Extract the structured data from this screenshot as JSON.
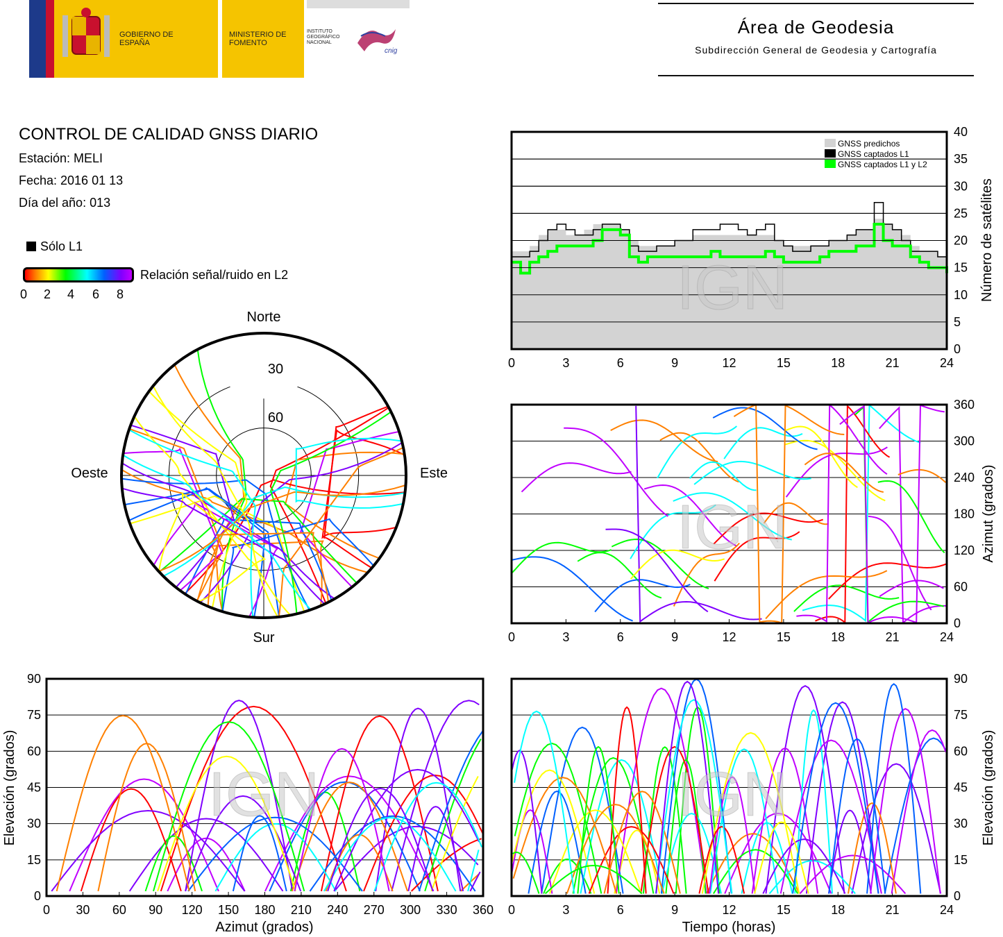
{
  "header": {
    "logo_gobierno": "GOBIERNO DE ESPAÑA",
    "logo_ministerio": "MINISTERIO DE FOMENTO",
    "logo_instituto": "INSTITUTO GEOGRÁFICO NACIONAL",
    "logo_cnig": "cnig",
    "area": "Área de Geodesia",
    "subdireccion": "Subdirección General de Geodesia y Cartografía"
  },
  "report": {
    "title": "CONTROL DE CALIDAD GNSS DIARIO",
    "station": "Estación: MELI",
    "date": "Fecha: 2016 01 13",
    "doy": "Día del año: 013"
  },
  "legend": {
    "l1_only": "Sólo L1",
    "snr_label": "Relación señal/ruido en L2",
    "snr_ticks": [
      "0",
      "2",
      "4",
      "6",
      "8"
    ],
    "colors": [
      "#ff0000",
      "#ff8000",
      "#ffff00",
      "#00ff00",
      "#00ffff",
      "#0060ff",
      "#8000ff",
      "#c000ff"
    ]
  },
  "watermark": "IGN",
  "chart_data": [
    {
      "type": "line",
      "id": "satellite-count",
      "ylabel": "Número de satélites",
      "xlim": [
        0,
        24
      ],
      "ylim": [
        0,
        40
      ],
      "xticks": [
        0,
        3,
        6,
        9,
        12,
        15,
        18,
        21,
        24
      ],
      "yticks": [
        0,
        5,
        10,
        15,
        20,
        25,
        30,
        35,
        40
      ],
      "grid": true,
      "legend_placement": "top-right",
      "x": [
        0,
        0.5,
        1,
        1.5,
        2,
        2.5,
        3,
        3.5,
        4,
        4.5,
        5,
        5.5,
        6,
        6.5,
        7,
        7.5,
        8,
        8.5,
        9,
        9.5,
        10,
        10.5,
        11,
        11.5,
        12,
        12.5,
        13,
        13.5,
        14,
        14.5,
        15,
        15.5,
        16,
        16.5,
        17,
        17.5,
        18,
        18.5,
        19,
        19.5,
        20,
        20.5,
        21,
        21.5,
        22,
        22.5,
        23,
        23.5,
        24
      ],
      "series": [
        {
          "name": "GNSS predichos",
          "color": "#d3d3d3",
          "values": [
            18,
            18,
            19,
            21,
            22,
            22,
            21,
            21,
            22,
            23,
            23,
            23,
            22,
            20,
            19,
            19,
            19,
            19,
            20,
            20,
            21,
            21,
            21,
            21,
            21,
            21,
            21,
            21,
            21,
            20,
            19,
            19,
            19,
            19,
            19,
            20,
            20,
            21,
            22,
            22,
            24,
            23,
            22,
            21,
            19,
            18,
            18,
            17,
            17
          ]
        },
        {
          "name": "GNSS captados L1",
          "color": "#000000",
          "values": [
            17,
            17,
            18,
            20,
            22,
            23,
            22,
            21,
            21,
            22,
            23,
            23,
            22,
            19,
            18,
            18,
            19,
            19,
            20,
            20,
            22,
            22,
            22,
            23,
            23,
            22,
            21,
            22,
            23,
            20,
            19,
            18,
            18,
            19,
            19,
            20,
            20,
            21,
            22,
            22,
            27,
            23,
            22,
            20,
            18,
            18,
            18,
            17,
            17
          ]
        },
        {
          "name": "GNSS captados L1 y L2",
          "color": "#00ff00",
          "values": [
            16,
            14,
            16,
            17,
            18,
            19,
            19,
            19,
            19,
            20,
            22,
            22,
            21,
            17,
            16,
            17,
            17,
            17,
            17,
            17,
            17,
            17,
            18,
            17,
            17,
            17,
            17,
            17,
            18,
            17,
            16,
            16,
            16,
            16,
            17,
            18,
            18,
            18,
            19,
            19,
            23,
            20,
            19,
            19,
            17,
            16,
            15,
            15,
            14
          ]
        }
      ]
    },
    {
      "type": "scatter",
      "id": "azimuth-vs-time",
      "ylabel": "Azimut (grados)",
      "xlim": [
        0,
        24
      ],
      "ylim": [
        0,
        360
      ],
      "xticks": [
        0,
        3,
        6,
        9,
        12,
        15,
        18,
        21,
        24
      ],
      "yticks": [
        0,
        60,
        120,
        180,
        240,
        300,
        360
      ],
      "grid": true
    },
    {
      "type": "scatter",
      "id": "skyplot",
      "labels": {
        "north": "Norte",
        "south": "Sur",
        "east": "Este",
        "west": "Oeste"
      },
      "elevation_rings": [
        "30",
        "60"
      ]
    },
    {
      "type": "scatter",
      "id": "elevation-vs-azimuth",
      "xlabel": "Azimut (grados)",
      "ylabel": "Elevación (grados)",
      "xlim": [
        0,
        360
      ],
      "ylim": [
        0,
        90
      ],
      "xticks": [
        0,
        30,
        60,
        90,
        120,
        150,
        180,
        210,
        240,
        270,
        300,
        330,
        360
      ],
      "yticks": [
        0,
        15,
        30,
        45,
        60,
        75,
        90
      ],
      "grid": true
    },
    {
      "type": "scatter",
      "id": "elevation-vs-time",
      "xlabel": "Tiempo (horas)",
      "ylabel": "Elevación (grados)",
      "xlim": [
        0,
        24
      ],
      "ylim": [
        0,
        90
      ],
      "xticks": [
        0,
        3,
        6,
        9,
        12,
        15,
        18,
        21,
        24
      ],
      "yticks": [
        0,
        15,
        30,
        45,
        60,
        75,
        90
      ],
      "grid": true
    }
  ]
}
